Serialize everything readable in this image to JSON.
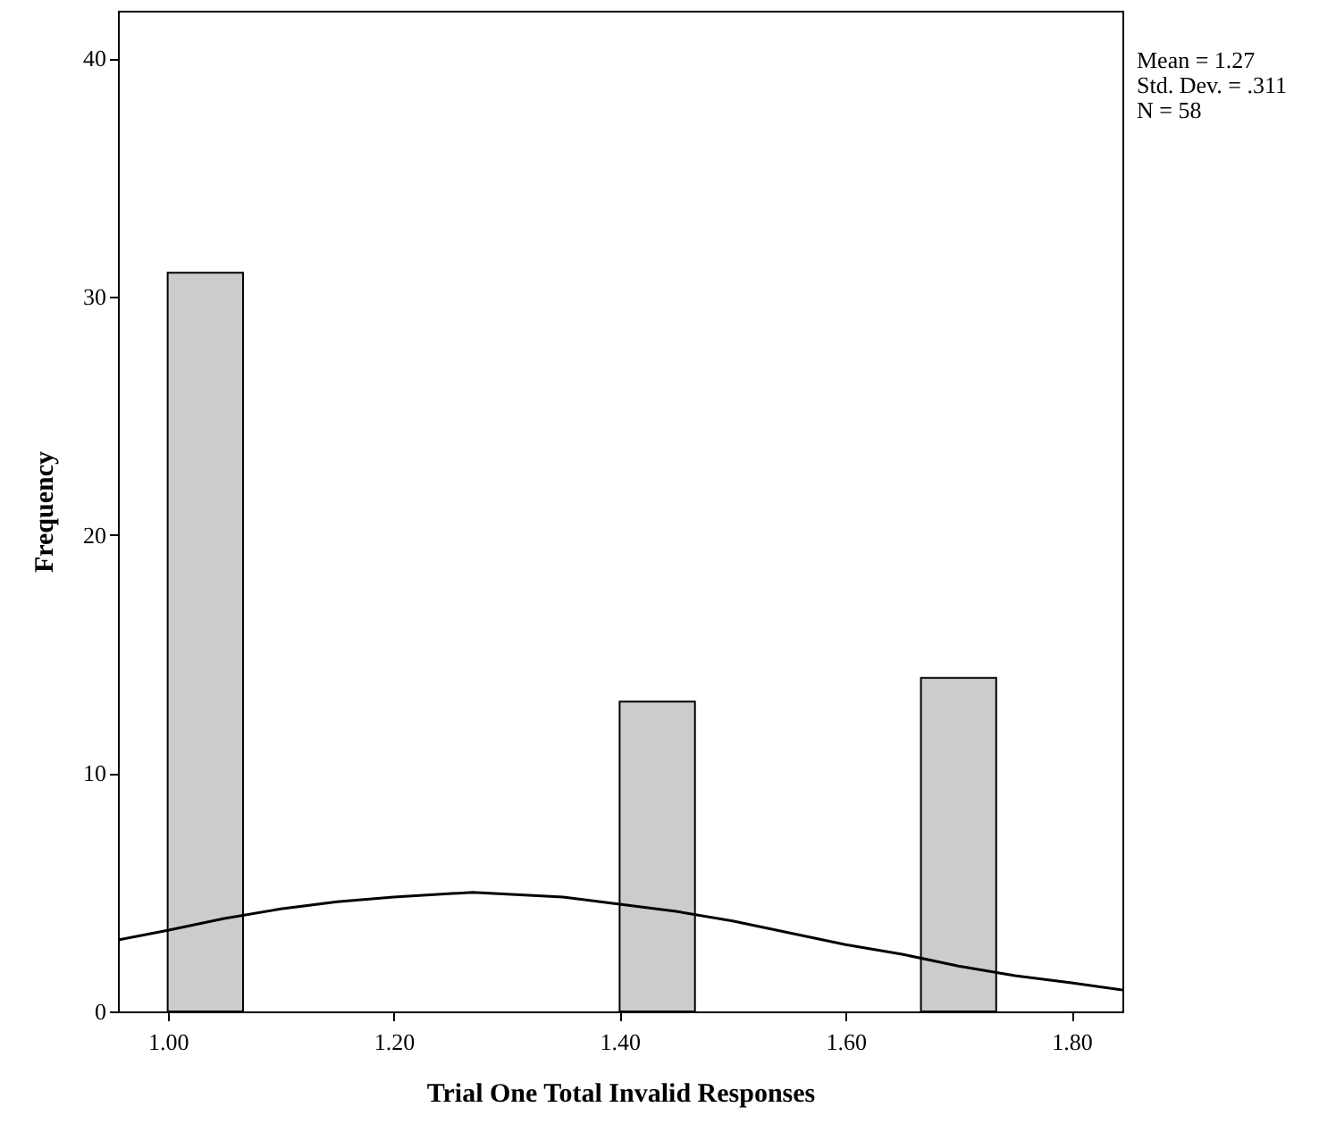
{
  "chart_data": {
    "type": "histogram",
    "xlabel": "Trial One Total Invalid Responses",
    "ylabel": "Frequency",
    "annotations": [
      "Mean = 1.27",
      "Std. Dev. = .311",
      "N = 58"
    ],
    "bins": [
      1,
      1.0667,
      1.1333,
      1.2,
      1.2667,
      1.3333,
      1.4,
      1.4667,
      1.5333,
      1.6,
      1.6667,
      1.7333
    ],
    "series": [
      {
        "color": "#cccccc",
        "values": [
          31,
          0,
          0,
          0,
          0,
          0,
          13,
          0,
          0,
          0,
          14
        ]
      },
      {
        "type": "line",
        "color": "#000000",
        "x": [
          0.956,
          1.0,
          1.05,
          1.1,
          1.15,
          1.2,
          1.27,
          1.35,
          1.4,
          1.45,
          1.5,
          1.55,
          1.6,
          1.65,
          1.7,
          1.75,
          1.8,
          1.845
        ],
        "values": [
          3.0,
          3.4,
          3.9,
          4.3,
          4.6,
          4.8,
          5.0,
          4.8,
          4.5,
          4.2,
          3.8,
          3.3,
          2.8,
          2.4,
          1.9,
          1.5,
          1.2,
          0.9
        ]
      }
    ],
    "xlim": [
      0.956,
      1.845
    ],
    "xticks": [
      {
        "value": 1,
        "label": "1.00"
      },
      {
        "value": 1.2,
        "label": "1.20"
      },
      {
        "value": 1.4,
        "label": "1.40"
      },
      {
        "value": 1.6,
        "label": "1.60"
      },
      {
        "value": 1.8,
        "label": "1.80"
      }
    ],
    "ylim": [
      0,
      42
    ],
    "yticks": [
      0,
      10,
      20,
      30,
      40
    ]
  }
}
